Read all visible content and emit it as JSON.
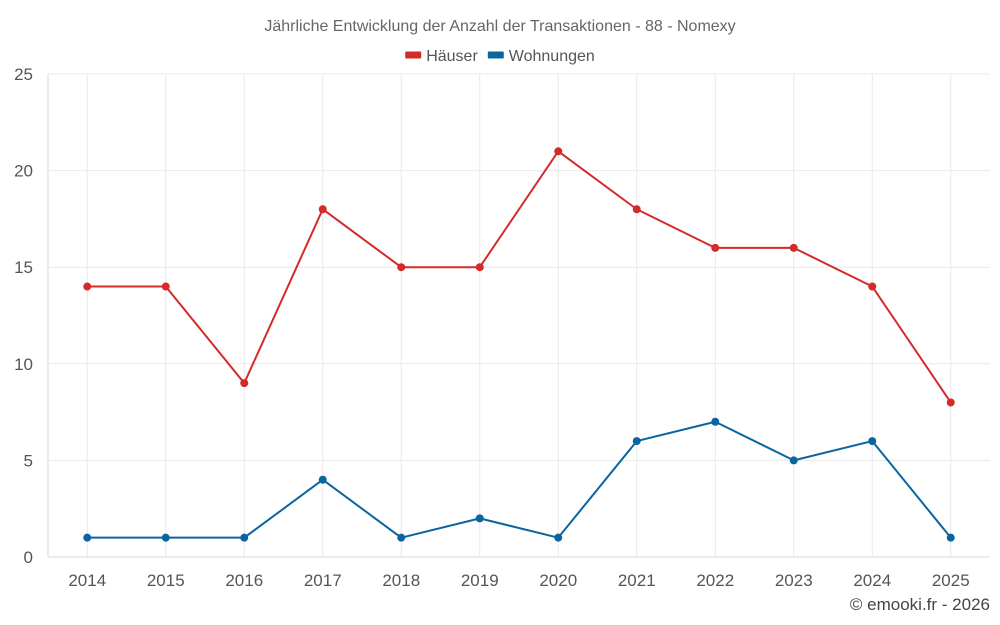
{
  "chart_data": {
    "type": "line",
    "title": "Jährliche Entwicklung der Anzahl der Transaktionen - 88 - Nomexy",
    "x": [
      "2014",
      "2015",
      "2016",
      "2017",
      "2018",
      "2019",
      "2020",
      "2021",
      "2022",
      "2023",
      "2024",
      "2025"
    ],
    "series": [
      {
        "name": "Häuser",
        "color": "#d42a2a",
        "values": [
          14,
          14,
          9,
          18,
          15,
          15,
          21,
          18,
          16,
          16,
          14,
          8
        ]
      },
      {
        "name": "Wohnungen",
        "color": "#0a64a0",
        "values": [
          1,
          1,
          1,
          4,
          1,
          2,
          1,
          6,
          7,
          5,
          6,
          1
        ]
      }
    ],
    "ylim": [
      0,
      25
    ],
    "yticks": [
      "0",
      "5",
      "10",
      "15",
      "20",
      "25"
    ],
    "grid": true,
    "legend": "top-center"
  },
  "credit": "© emooki.fr - 2026"
}
